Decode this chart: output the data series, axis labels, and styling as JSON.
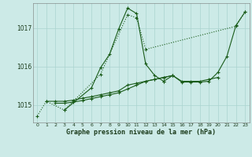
{
  "title": "Graphe pression niveau de la mer (hPa)",
  "background_color": "#cceae7",
  "grid_color": "#aad4d0",
  "line_color": "#1a5c1a",
  "xlim": [
    -0.5,
    23.5
  ],
  "ylim": [
    1014.55,
    1017.65
  ],
  "yticks": [
    1015,
    1016,
    1017
  ],
  "xticks": [
    0,
    1,
    2,
    3,
    4,
    5,
    6,
    7,
    8,
    9,
    10,
    11,
    12,
    13,
    14,
    15,
    16,
    17,
    18,
    19,
    20,
    21,
    22,
    23
  ],
  "series1_x": [
    0,
    1,
    3,
    7,
    10,
    11,
    12,
    22,
    23
  ],
  "series1_y": [
    1014.72,
    1015.1,
    1014.87,
    1015.8,
    1017.35,
    1017.27,
    1016.45,
    1017.05,
    1017.42
  ],
  "series2_x": [
    3,
    6,
    7,
    8,
    9,
    10,
    11,
    12,
    13,
    14
  ],
  "series2_y": [
    1014.87,
    1015.45,
    1015.97,
    1016.32,
    1016.97,
    1017.52,
    1017.38,
    1016.07,
    1015.77,
    1015.62
  ],
  "series3_x": [
    1,
    2,
    3,
    4,
    5,
    6,
    7,
    8,
    9,
    10,
    11,
    12,
    13,
    14,
    15,
    16,
    17,
    18,
    19,
    20
  ],
  "series3_y": [
    1015.1,
    1015.1,
    1015.1,
    1015.13,
    1015.18,
    1015.22,
    1015.27,
    1015.32,
    1015.37,
    1015.52,
    1015.57,
    1015.62,
    1015.67,
    1015.72,
    1015.77,
    1015.62,
    1015.62,
    1015.62,
    1015.67,
    1015.72
  ],
  "series4_x": [
    2,
    3,
    4,
    5,
    6,
    7,
    8,
    9,
    10,
    11,
    12,
    13,
    14,
    15
  ],
  "series4_y": [
    1015.05,
    1015.05,
    1015.08,
    1015.12,
    1015.17,
    1015.22,
    1015.27,
    1015.32,
    1015.42,
    1015.52,
    1015.62,
    1015.67,
    1015.72,
    1015.77
  ],
  "series5_x": [
    14,
    15,
    16,
    17,
    18,
    19,
    20,
    21,
    22,
    23
  ],
  "series5_y": [
    1015.62,
    1015.77,
    1015.6,
    1015.6,
    1015.6,
    1015.62,
    1015.85,
    1016.27,
    1017.07,
    1017.42
  ]
}
